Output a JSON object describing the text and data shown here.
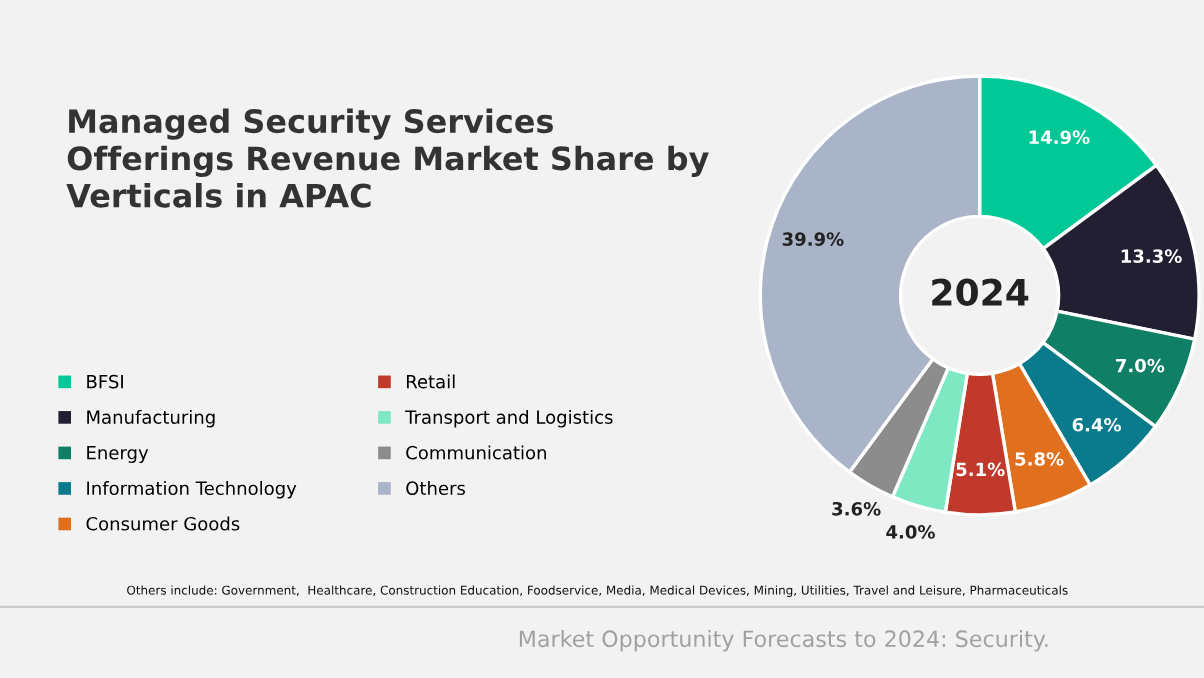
{
  "chart_data": {
    "type": "donut",
    "title": "Managed Security Services Offerings Revenue Market Share by Verticals in APAC",
    "categories": [
      "BFSI",
      "Manufacturing",
      "Energy",
      "Information Technology",
      "Consumer Goods",
      "Retail",
      "Transport and Logistics",
      "Communication",
      "Others"
    ],
    "values": [
      14.9,
      13.3,
      7.0,
      6.4,
      5.8,
      5.1,
      4.0,
      3.6,
      39.9
    ],
    "value_labels": [
      "14.9%",
      "13.3%",
      "7.0%",
      "6.4%",
      "5.8%",
      "5.1%",
      "4.0%",
      "3.6%",
      "39.9%"
    ],
    "colors": [
      "#00c896",
      "#231f33",
      "#0f8066",
      "#0a7b8c",
      "#e0701e",
      "#c0392b",
      "#7ee8c2",
      "#8c8c8c",
      "#aab4c8"
    ],
    "legend": "left",
    "annotations": [
      "2024",
      "Others include: Government,  Healthcare, Construction Education, Foodservice, Media, Medical Devices, Mining, Utilities, Travel and Leisure, Pharmaceuticals",
      "Market Opportunity Forecasts to 2024: Security."
    ]
  }
}
